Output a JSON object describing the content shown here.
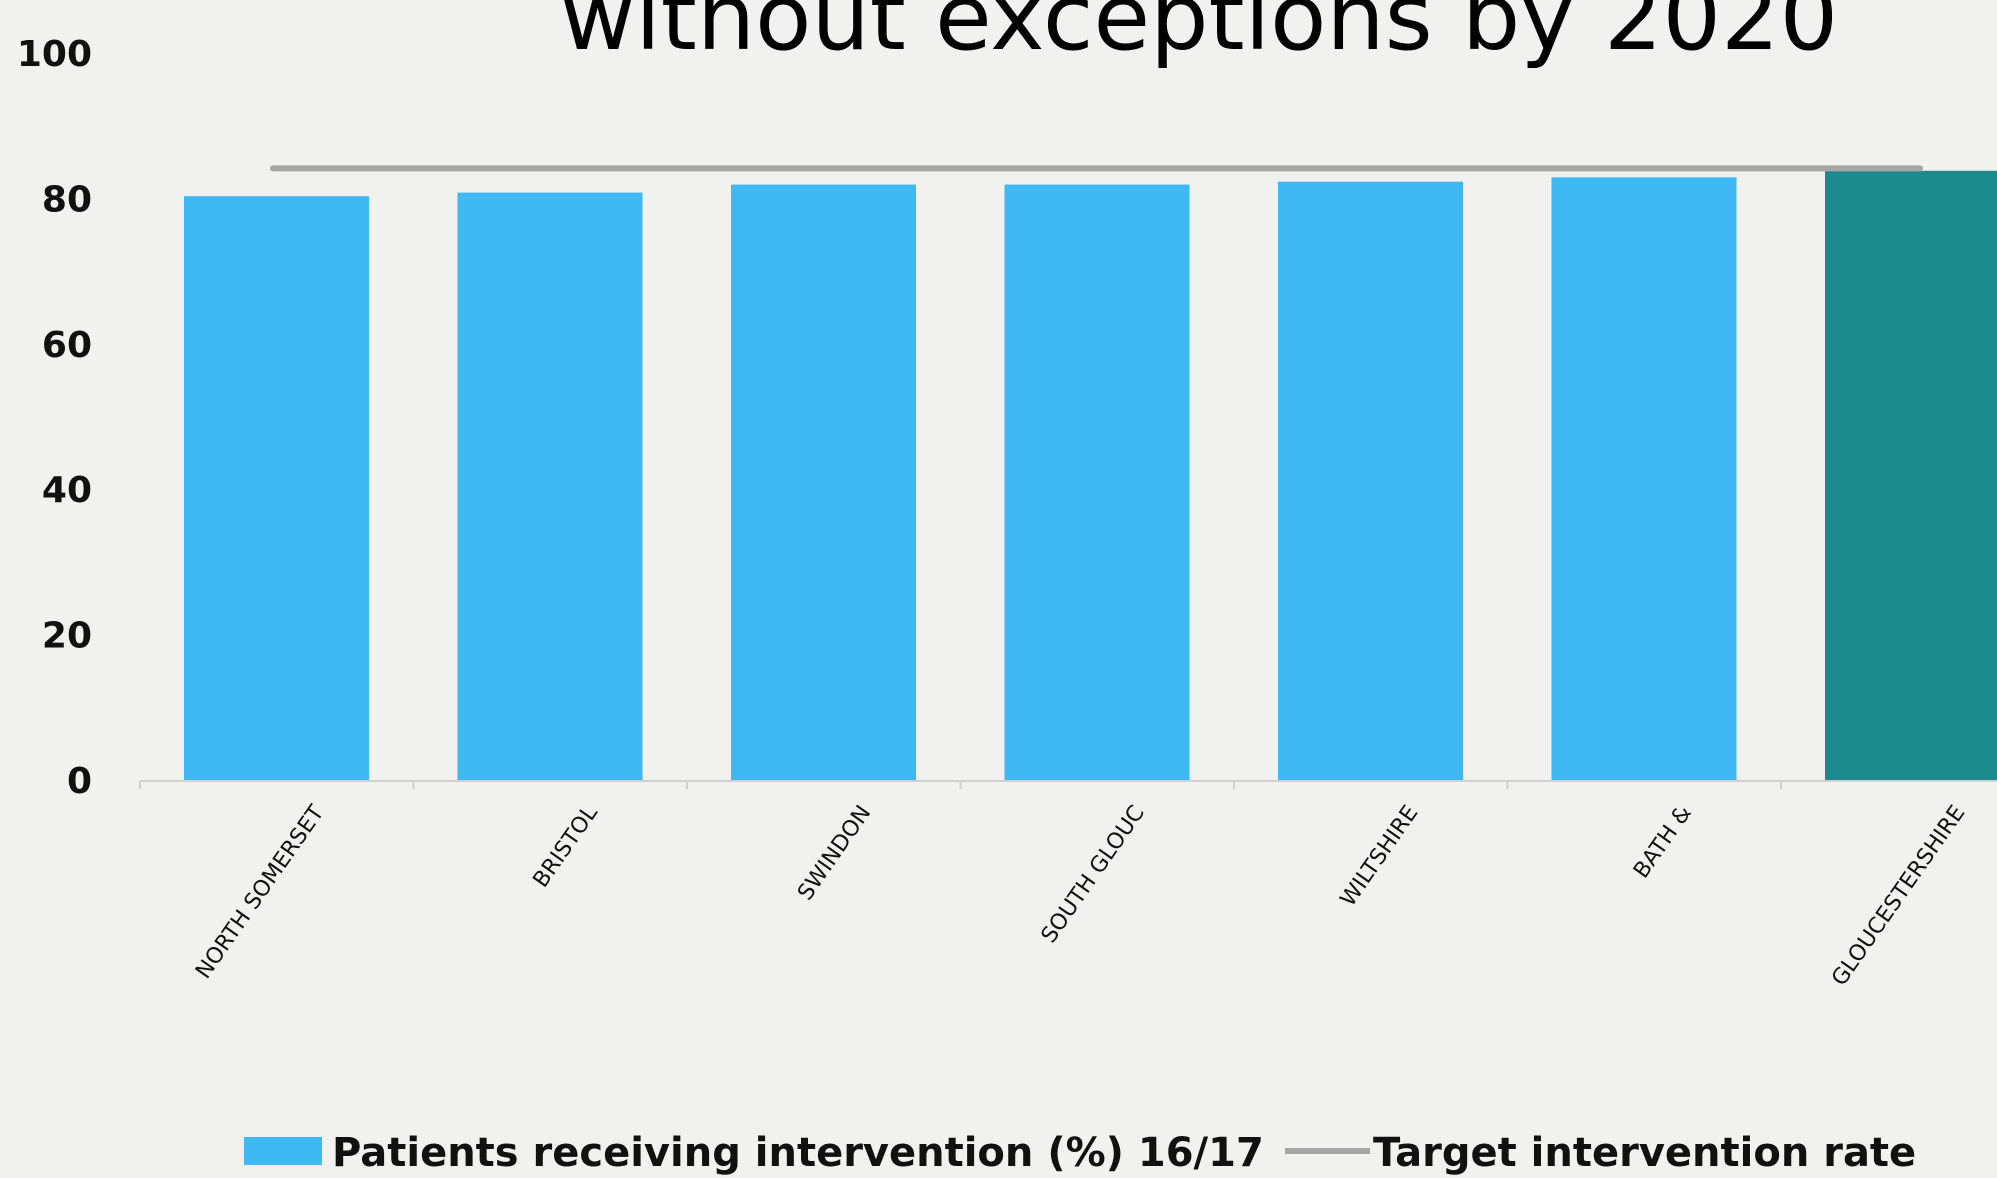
{
  "chart_data": {
    "type": "bar",
    "title": "without exceptions by 2020",
    "categories": [
      "NORTH SOMERSET",
      "BRISTOL",
      "SWINDON",
      "SOUTH GLOUC",
      "WILTSHIRE",
      "BATH &",
      "GLOUCESTERSHIRE"
    ],
    "series": [
      {
        "name": "Patients receiving intervention (%) 16/17",
        "values": [
          80.3,
          80.8,
          81.9,
          81.9,
          82.3,
          82.9,
          83.8
        ],
        "color": "#3fb8f3",
        "highlight_color": "#1c8a8d",
        "highlight_category": "GLOUCESTERSHIRE"
      },
      {
        "name": "Target intervention rate",
        "type": "line",
        "values": [
          84,
          84,
          84,
          84,
          84,
          84,
          84
        ],
        "color": "#a6a6a6"
      }
    ],
    "ylim": [
      0,
      100
    ],
    "yticks": [
      "0",
      "20",
      "40",
      "60",
      "80",
      "100"
    ],
    "xlabel": "",
    "ylabel": "",
    "grid": false,
    "legend": "bottom"
  }
}
